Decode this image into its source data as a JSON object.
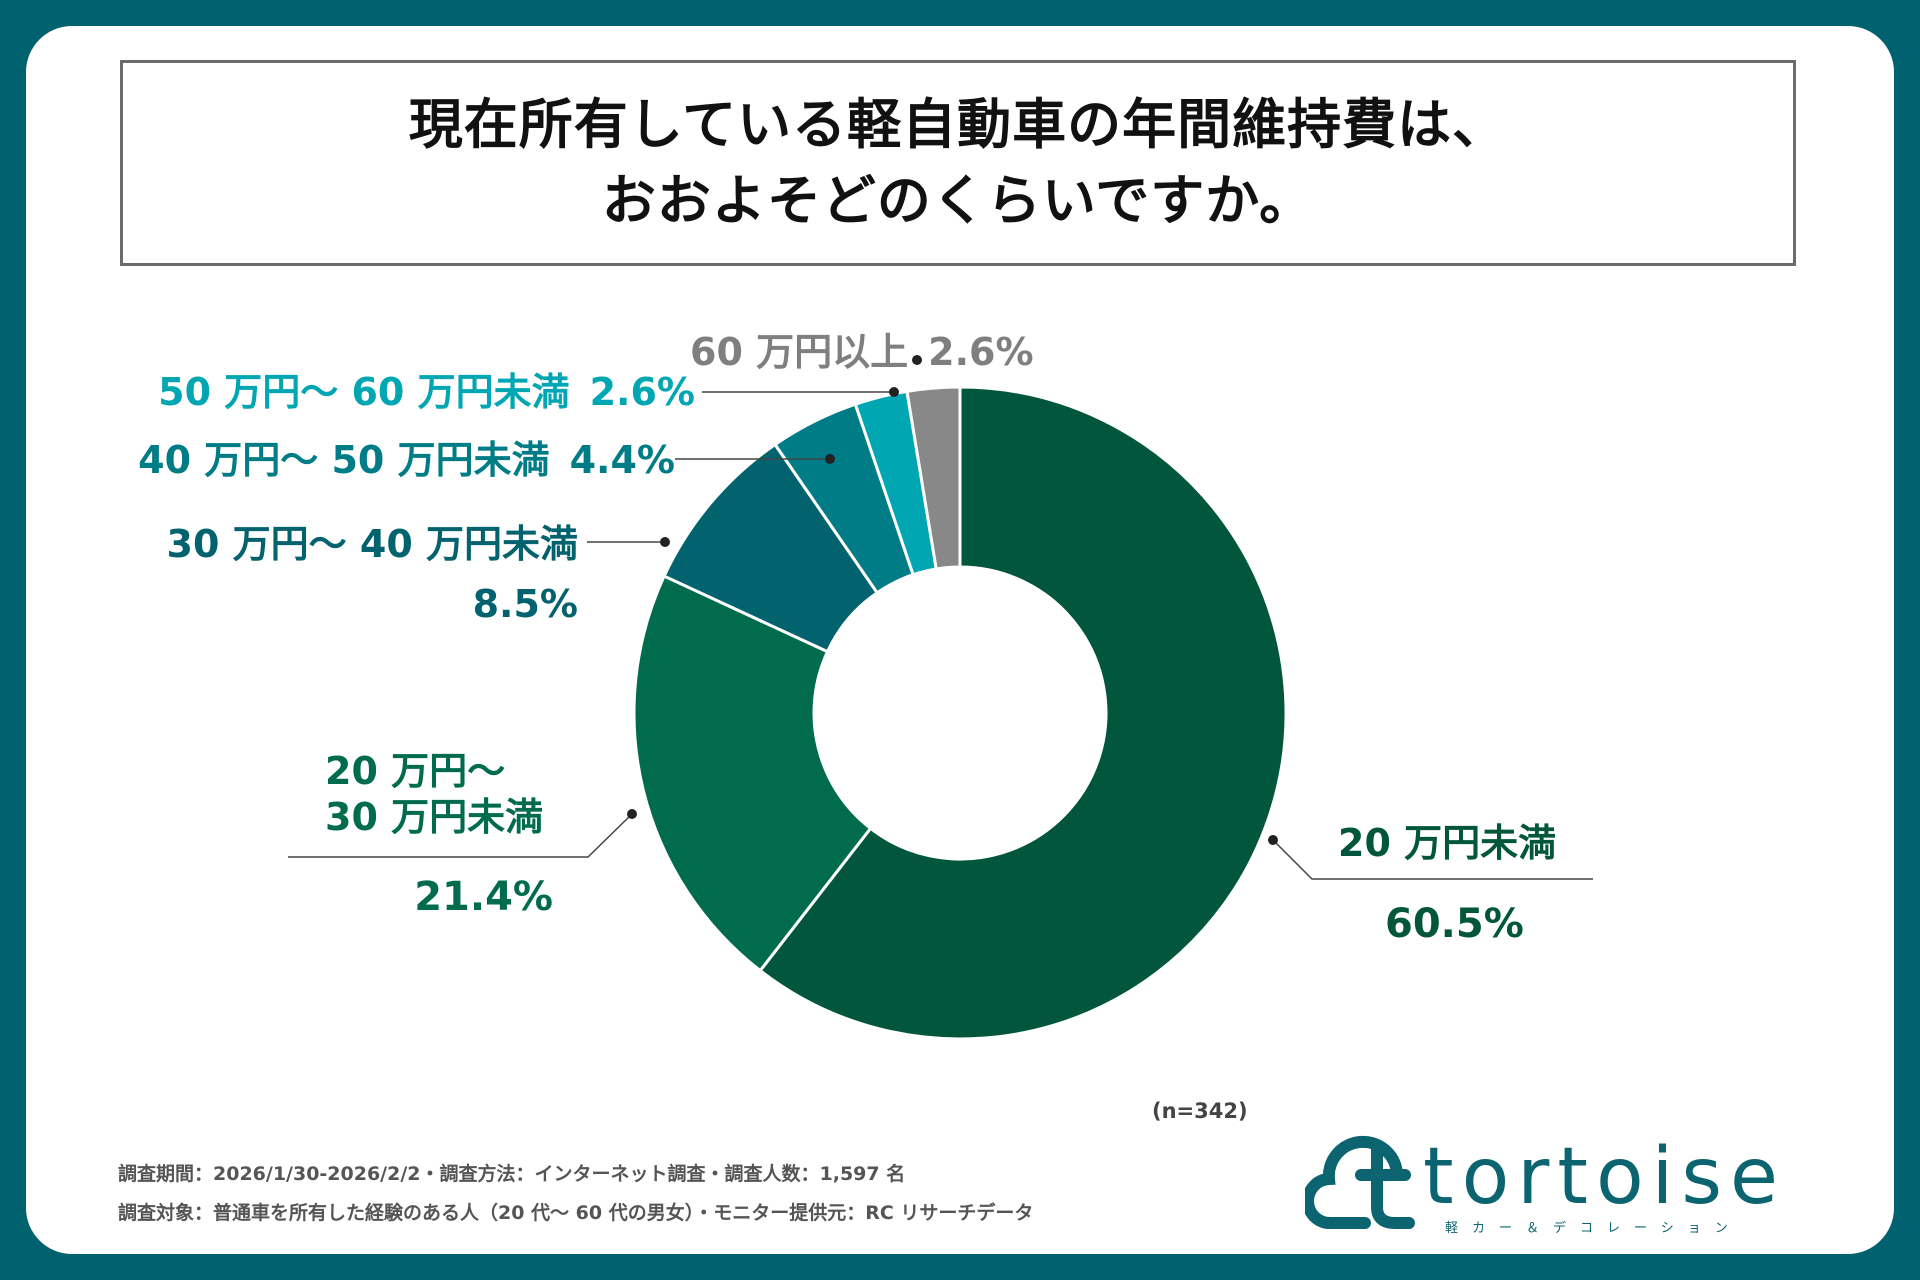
{
  "title": {
    "line1": "現在所有している軽自動車の年間維持費は、",
    "line2": "おおよそどのくらいですか。"
  },
  "chart_data": {
    "type": "pie",
    "variant": "donut",
    "title": "現在所有している軽自動車の年間維持費は、おおよそどのくらいですか。",
    "unit": "%",
    "slices": [
      {
        "label": "20 万円未満",
        "value": 60.5,
        "value_label": "60.5%",
        "color": "#02563c"
      },
      {
        "label": "20 万円〜 30 万円未満",
        "label_line1": "20 万円〜",
        "label_line2": "30 万円未満",
        "value": 21.4,
        "value_label": "21.4%",
        "color": "#006b4d"
      },
      {
        "label": "30 万円〜 40 万円未満",
        "value": 8.5,
        "value_label": "8.5%",
        "color": "#02626e"
      },
      {
        "label": "40 万円〜 50 万円未満",
        "value": 4.4,
        "value_label": "4.4%",
        "color": "#007c86"
      },
      {
        "label": "50 万円〜 60 万円未満",
        "value": 2.6,
        "value_label": "2.6%",
        "color": "#00a6b2"
      },
      {
        "label": "60 万円以上",
        "value": 2.6,
        "value_label": "2.6%",
        "color": "#888888"
      }
    ],
    "n": "(n=342)"
  },
  "footer": {
    "line1": "調査期間：2026/1/30-2026/2/2・調査方法：インターネット調査・調査人数：1,597 名",
    "line2": "調査対象：普通車を所有した経験のある人（20 代〜 60 代の男女）・モニター提供元：RC リサーチデータ"
  },
  "logo": {
    "name": "tortoise",
    "tagline": "軽カー＆デコレーション",
    "color": "#0b6470"
  }
}
